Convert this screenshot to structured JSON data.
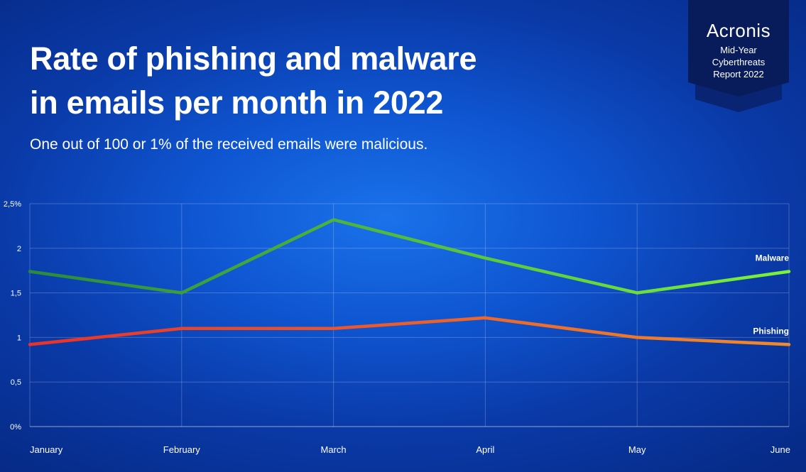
{
  "header": {
    "title_line1": "Rate of phishing and malware",
    "title_line2": "in emails per month in 2022",
    "subtitle": "One out of 100 or 1% of the received emails were malicious."
  },
  "badge": {
    "logo": "Acronis",
    "line1": "Mid-Year",
    "line2": "Cyberthreats",
    "line3": "Report 2022"
  },
  "chart_data": {
    "type": "line",
    "categories": [
      "January",
      "February",
      "March",
      "April",
      "May",
      "June"
    ],
    "y_tick_labels": [
      "0%",
      "0,5",
      "1",
      "1,5",
      "2",
      "2,5%"
    ],
    "ylim": [
      0,
      2.5
    ],
    "grid": true,
    "series": [
      {
        "name": "Malware",
        "values": [
          1.74,
          1.5,
          2.32,
          1.89,
          1.5,
          1.74
        ],
        "color_start": "#2a8a3a",
        "color_end": "#7cf23a"
      },
      {
        "name": "Phishing",
        "values": [
          0.92,
          1.1,
          1.1,
          1.22,
          1.0,
          0.92
        ],
        "color_start": "#e8322a",
        "color_end": "#f08a2a"
      }
    ]
  }
}
